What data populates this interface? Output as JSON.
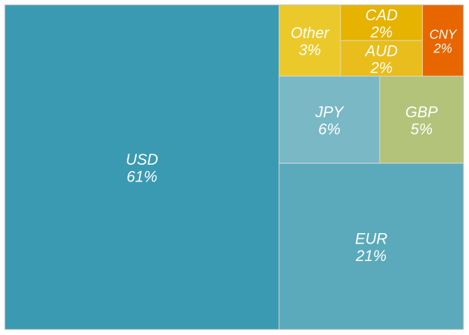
{
  "chart_data": {
    "type": "treemap",
    "title": "",
    "value_unit": "%",
    "tiles": [
      {
        "name": "USD",
        "label": "USD",
        "value": 61,
        "value_label": "61%",
        "color": "#3a9ab2"
      },
      {
        "name": "EUR",
        "label": "EUR",
        "value": 21,
        "value_label": "21%",
        "color": "#5aaabb"
      },
      {
        "name": "JPY",
        "label": "JPY",
        "value": 6,
        "value_label": "6%",
        "color": "#7ab8c6"
      },
      {
        "name": "GBP",
        "label": "GBP",
        "value": 5,
        "value_label": "5%",
        "color": "#b3c37a"
      },
      {
        "name": "Other",
        "label": "Other",
        "value": 3,
        "value_label": "3%",
        "color": "#ecc92a"
      },
      {
        "name": "CAD",
        "label": "CAD",
        "value": 2,
        "value_label": "2%",
        "color": "#e5b300"
      },
      {
        "name": "AUD",
        "label": "AUD",
        "value": 2,
        "value_label": "2%",
        "color": "#e9bd1c"
      },
      {
        "name": "CNY",
        "label": "CNY",
        "value": 2,
        "value_label": "2%",
        "color": "#e86600"
      }
    ]
  }
}
